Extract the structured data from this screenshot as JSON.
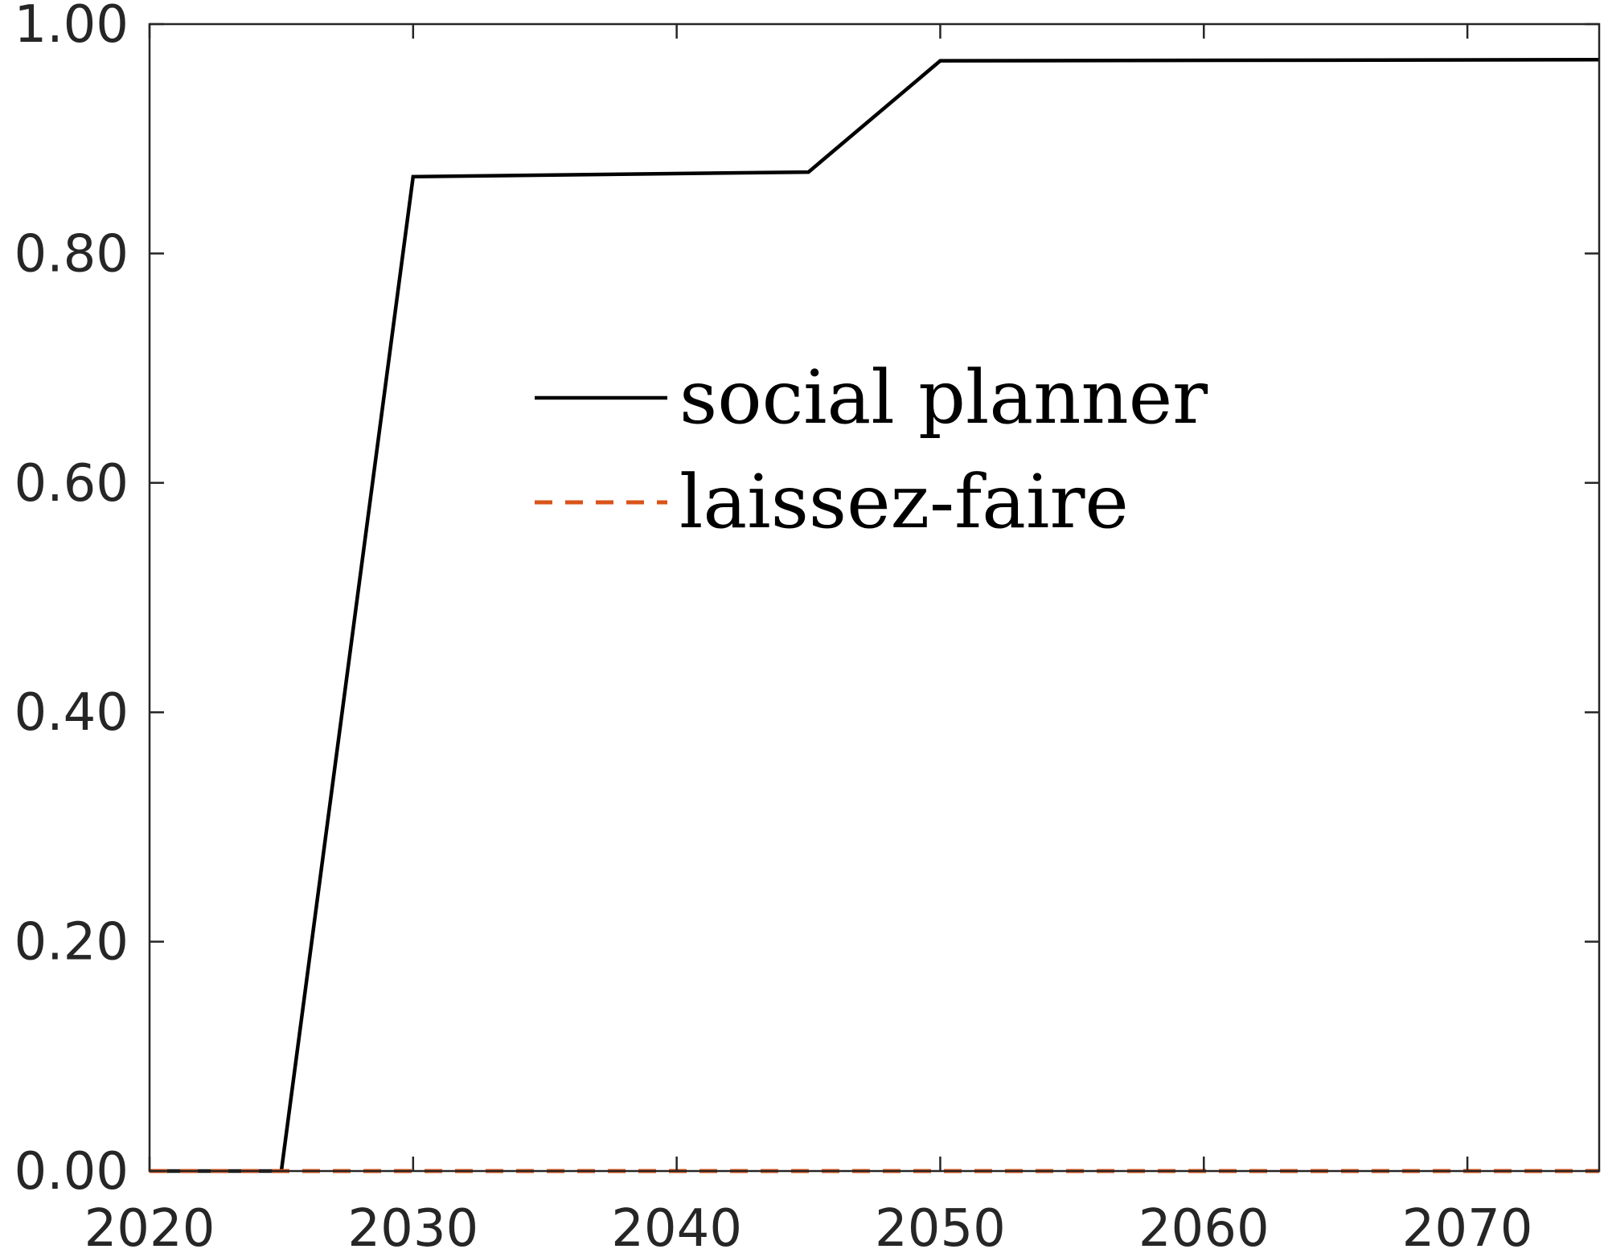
{
  "chart_data": {
    "type": "line",
    "title": "",
    "xlabel": "",
    "ylabel": "",
    "xlim": [
      2020,
      2075
    ],
    "ylim": [
      0,
      1
    ],
    "x_ticks": [
      2020,
      2030,
      2040,
      2050,
      2060,
      2070
    ],
    "x_tick_labels": [
      "2020",
      "2030",
      "2040",
      "2050",
      "2060",
      "2070"
    ],
    "y_ticks": [
      0,
      0.2,
      0.4,
      0.6,
      0.8,
      1.0
    ],
    "y_tick_labels": [
      "0.00",
      "0.20",
      "0.40",
      "0.60",
      "0.80",
      "1.00"
    ],
    "grid": false,
    "legend_position": "center",
    "series": [
      {
        "name": "social planner",
        "color": "#000000",
        "style": "solid",
        "x": [
          2020,
          2025,
          2030,
          2045,
          2050,
          2075
        ],
        "values": [
          0,
          0,
          0.867,
          0.871,
          0.968,
          0.969
        ]
      },
      {
        "name": "laissez-faire",
        "color": "#D95319",
        "style": "dashed",
        "x": [
          2020,
          2075
        ],
        "values": [
          0,
          0
        ]
      }
    ]
  }
}
